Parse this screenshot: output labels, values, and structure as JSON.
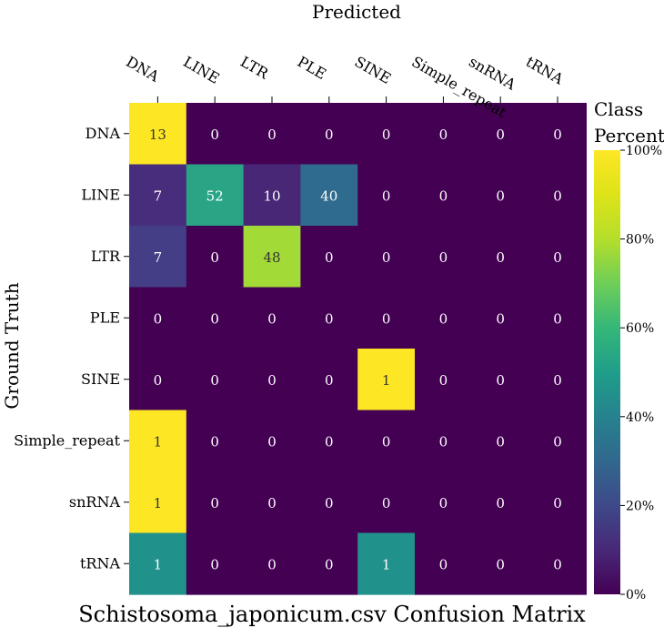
{
  "chart_data": {
    "type": "heatmap",
    "title": "Schistosoma_japonicum.csv Confusion Matrix",
    "xlabel": "Predicted",
    "ylabel": "Ground Truth",
    "x_categories": [
      "DNA",
      "LINE",
      "LTR",
      "PLE",
      "SINE",
      "Simple_repeat",
      "snRNA",
      "tRNA"
    ],
    "y_categories": [
      "DNA",
      "LINE",
      "LTR",
      "PLE",
      "SINE",
      "Simple_repeat",
      "snRNA",
      "tRNA"
    ],
    "values": [
      [
        13,
        0,
        0,
        0,
        0,
        0,
        0,
        0
      ],
      [
        7,
        52,
        10,
        40,
        0,
        0,
        0,
        0
      ],
      [
        7,
        0,
        48,
        0,
        0,
        0,
        0,
        0
      ],
      [
        0,
        0,
        0,
        0,
        0,
        0,
        0,
        0
      ],
      [
        0,
        0,
        0,
        0,
        1,
        0,
        0,
        0
      ],
      [
        1,
        0,
        0,
        0,
        0,
        0,
        0,
        0
      ],
      [
        1,
        0,
        0,
        0,
        0,
        0,
        0,
        0
      ],
      [
        1,
        0,
        0,
        0,
        1,
        0,
        0,
        0
      ]
    ],
    "colorbar": {
      "title_line1": "Class",
      "title_line2": "Percent",
      "ticks": [
        "0%",
        "20%",
        "40%",
        "60%",
        "80%",
        "100%"
      ],
      "range": [
        0,
        100
      ],
      "colormap": "viridis"
    },
    "cell_colors": [
      [
        "#fde725",
        "#440154",
        "#440154",
        "#440154",
        "#440154",
        "#440154",
        "#440154",
        "#440154"
      ],
      [
        "#472d7b",
        "#29a586",
        "#482777",
        "#2f6b8e",
        "#440154",
        "#440154",
        "#440154",
        "#440154"
      ],
      [
        "#433e85",
        "#440154",
        "#a2da37",
        "#440154",
        "#440154",
        "#440154",
        "#440154",
        "#440154"
      ],
      [
        "#440154",
        "#440154",
        "#440154",
        "#440154",
        "#440154",
        "#440154",
        "#440154",
        "#440154"
      ],
      [
        "#440154",
        "#440154",
        "#440154",
        "#440154",
        "#fde725",
        "#440154",
        "#440154",
        "#440154"
      ],
      [
        "#fde725",
        "#440154",
        "#440154",
        "#440154",
        "#440154",
        "#440154",
        "#440154",
        "#440154"
      ],
      [
        "#fde725",
        "#440154",
        "#440154",
        "#440154",
        "#440154",
        "#440154",
        "#440154",
        "#440154"
      ],
      [
        "#21918c",
        "#440154",
        "#440154",
        "#440154",
        "#21918c",
        "#440154",
        "#440154",
        "#440154"
      ]
    ]
  }
}
